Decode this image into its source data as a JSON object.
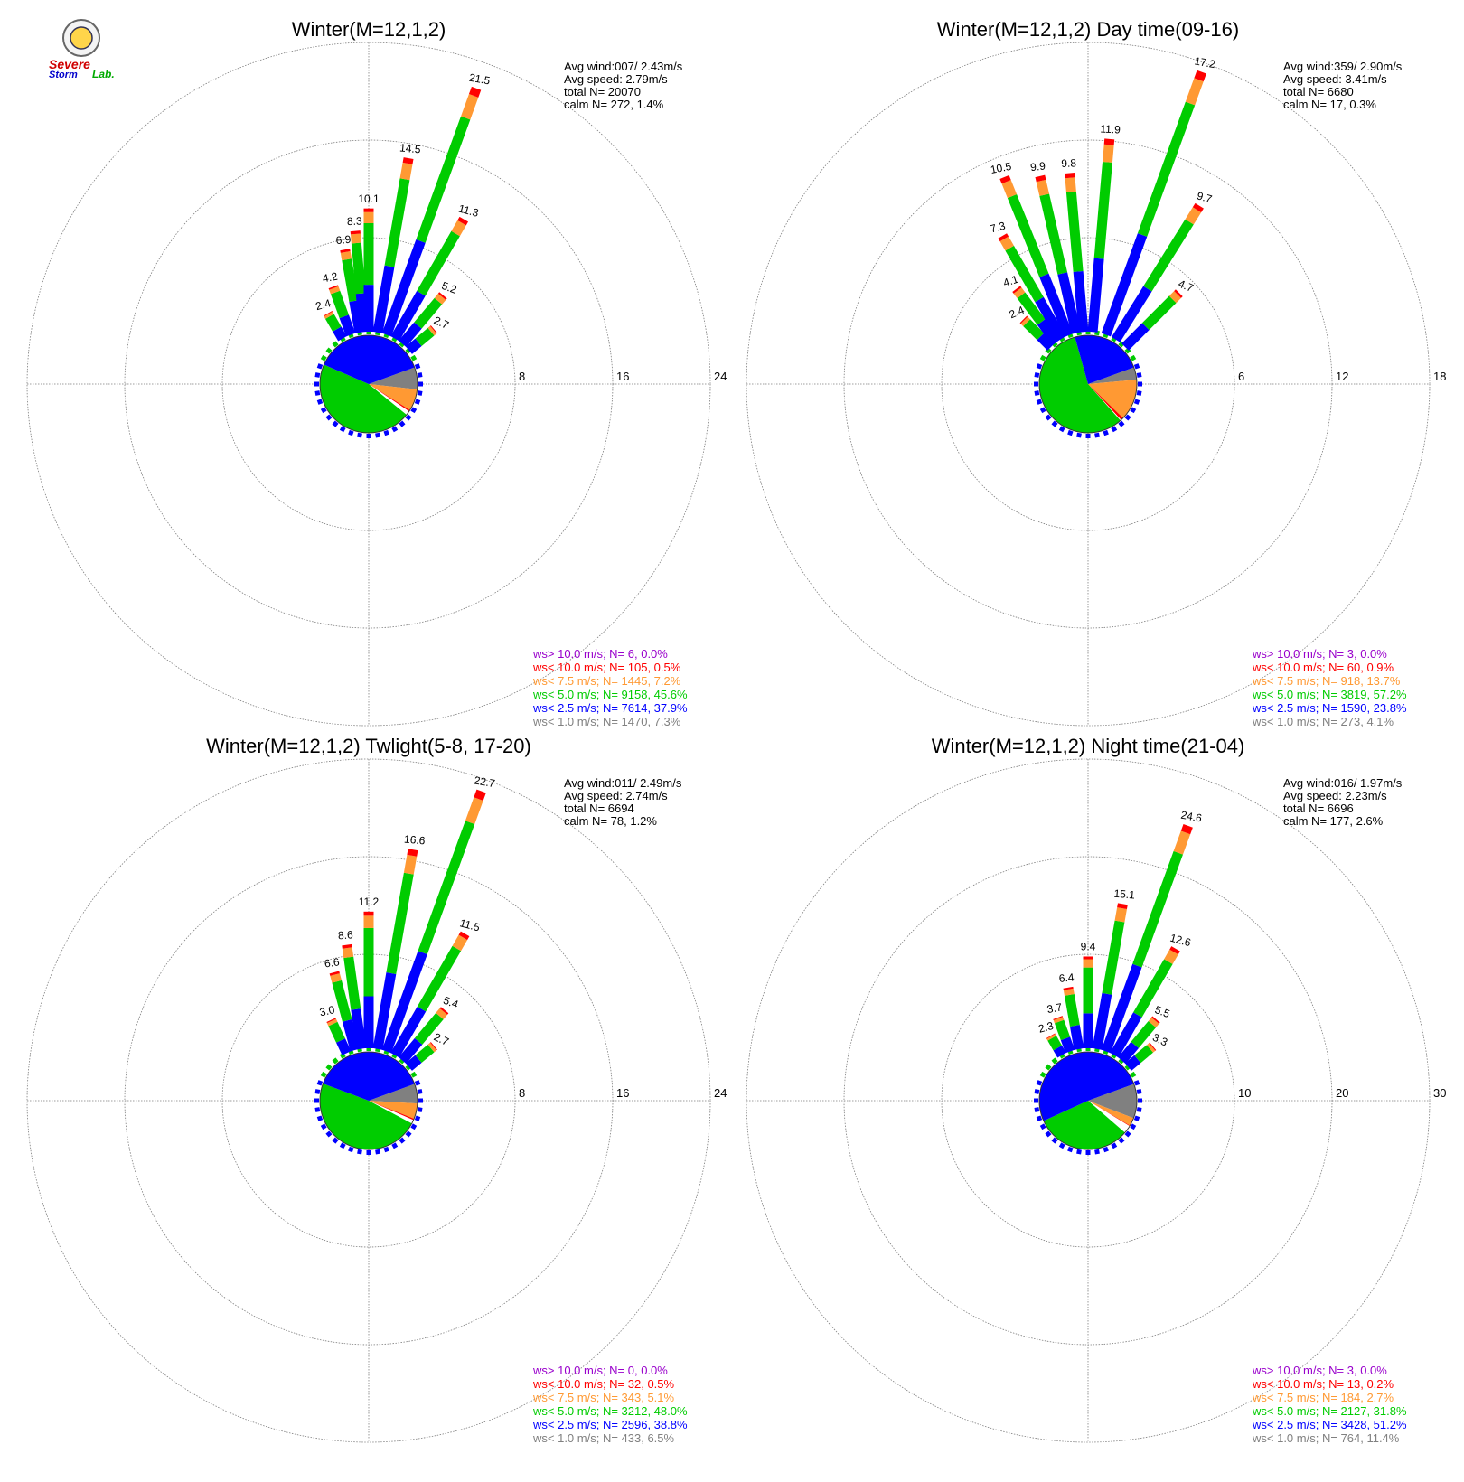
{
  "colors": {
    "gt10": "#9900cc",
    "lt10": "#ff0000",
    "lt75": "#ff9933",
    "lt50": "#00cc00",
    "lt25": "#0000ff",
    "lt10ms": "#808080",
    "grid": "#7f7f7f",
    "text": "#000000"
  },
  "logo": {
    "text_a": "Severe",
    "text_b": "Storm",
    "text_c": "Lab."
  },
  "chart_data": [
    {
      "type": "windrose",
      "title": "Winter(M=12,1,2)",
      "rmax": 24,
      "rings": [
        8,
        16,
        24
      ],
      "info": [
        "Avg wind:007/ 2.43m/s",
        "Avg speed: 2.79m/s",
        "total N=      20070",
        "calm N=    272,   1.4%"
      ],
      "legend": [
        {
          "key": "gt10",
          "text": "ws> 10.0 m/s; N=     6,  0.0%"
        },
        {
          "key": "lt10",
          "text": "ws< 10.0 m/s; N=   105,  0.5%"
        },
        {
          "key": "lt75",
          "text": "ws<  7.5 m/s; N=  1445,  7.2%"
        },
        {
          "key": "lt50",
          "text": "ws<  5.0 m/s; N=  9158, 45.6%"
        },
        {
          "key": "lt25",
          "text": "ws<  2.5 m/s; N=  7614, 37.9%"
        },
        {
          "key": "lt10ms",
          "text": "ws<  1.0 m/s; N=  1470,  7.3%"
        }
      ],
      "bars": [
        {
          "dir": 330,
          "total": 2.4,
          "label": "2.4"
        },
        {
          "dir": 340,
          "total": 4.2,
          "label": "4.2"
        },
        {
          "dir": 350,
          "total": 6.9,
          "label": "6.9"
        },
        {
          "dir": 355,
          "total": 8.3,
          "label": "8.3"
        },
        {
          "dir": 0,
          "total": 10.1,
          "label": "10.1"
        },
        {
          "dir": 10,
          "total": 14.5,
          "label": "14.5"
        },
        {
          "dir": 20,
          "total": 21.5,
          "label": "21.5"
        },
        {
          "dir": 30,
          "total": 11.3,
          "label": "11.3"
        },
        {
          "dir": 40,
          "total": 5.2,
          "label": "5.2"
        },
        {
          "dir": 50,
          "total": 2.7,
          "label": "2.7"
        }
      ],
      "pie": {
        "lt10ms": 7.3,
        "lt25": 37.9,
        "lt50": 45.6,
        "lt75": 7.2,
        "lt10": 0.5,
        "gt10": 0.0,
        "calm": 1.4
      }
    },
    {
      "type": "windrose",
      "title": "Winter(M=12,1,2) Day time(09-16)",
      "rmax": 18,
      "rings": [
        6,
        12,
        18
      ],
      "info": [
        "Avg wind:359/ 2.90m/s",
        "Avg speed: 3.41m/s",
        "total N=       6680",
        "calm N=     17,   0.3%"
      ],
      "legend": [
        {
          "key": "gt10",
          "text": "ws> 10.0 m/s; N=     3,  0.0%"
        },
        {
          "key": "lt10",
          "text": "ws< 10.0 m/s; N=    60,  0.9%"
        },
        {
          "key": "lt75",
          "text": "ws<  7.5 m/s; N=   918, 13.7%"
        },
        {
          "key": "lt50",
          "text": "ws<  5.0 m/s; N=  3819, 57.2%"
        },
        {
          "key": "lt25",
          "text": "ws<  2.5 m/s; N=  1590, 23.8%"
        },
        {
          "key": "lt10ms",
          "text": "ws<  1.0 m/s; N=   273,  4.1%"
        }
      ],
      "bars": [
        {
          "dir": 315,
          "total": 2.4,
          "label": "2.4"
        },
        {
          "dir": 323,
          "total": 4.1,
          "label": "4.1"
        },
        {
          "dir": 330,
          "total": 7.3,
          "label": "7.3"
        },
        {
          "dir": 338,
          "total": 10.5,
          "label": "10.5"
        },
        {
          "dir": 347,
          "total": 9.9,
          "label": "9.9"
        },
        {
          "dir": 355,
          "total": 9.8,
          "label": "9.8"
        },
        {
          "dir": 5,
          "total": 11.9,
          "label": "11.9"
        },
        {
          "dir": 20,
          "total": 17.2,
          "label": "17.2"
        },
        {
          "dir": 32,
          "total": 9.7,
          "label": "9.7"
        },
        {
          "dir": 45,
          "total": 4.7,
          "label": "4.7"
        }
      ],
      "pie": {
        "lt10ms": 4.1,
        "lt25": 23.8,
        "lt50": 57.2,
        "lt75": 13.7,
        "lt10": 0.9,
        "gt10": 0.0,
        "calm": 0.3
      }
    },
    {
      "type": "windrose",
      "title": "Winter(M=12,1,2) Twlight(5-8, 17-20)",
      "rmax": 24,
      "rings": [
        8,
        16,
        24
      ],
      "info": [
        "Avg wind:011/ 2.49m/s",
        "Avg speed: 2.74m/s",
        "total N=       6694",
        "calm N=     78,   1.2%"
      ],
      "legend": [
        {
          "key": "gt10",
          "text": "ws> 10.0 m/s; N=     0,  0.0%"
        },
        {
          "key": "lt10",
          "text": "ws< 10.0 m/s; N=    32,  0.5%"
        },
        {
          "key": "lt75",
          "text": "ws<  7.5 m/s; N=   343,  5.1%"
        },
        {
          "key": "lt50",
          "text": "ws<  5.0 m/s; N=  3212, 48.0%"
        },
        {
          "key": "lt25",
          "text": "ws<  2.5 m/s; N=  2596, 38.8%"
        },
        {
          "key": "lt10ms",
          "text": "ws<  1.0 m/s; N=   433,  6.5%"
        }
      ],
      "bars": [
        {
          "dir": 335,
          "total": 3.0,
          "label": "3.0"
        },
        {
          "dir": 345,
          "total": 6.6,
          "label": "6.6"
        },
        {
          "dir": 352,
          "total": 8.6,
          "label": "8.6"
        },
        {
          "dir": 0,
          "total": 11.2,
          "label": "11.2"
        },
        {
          "dir": 10,
          "total": 16.6,
          "label": "16.6"
        },
        {
          "dir": 20,
          "total": 22.7,
          "label": "22.7"
        },
        {
          "dir": 30,
          "total": 11.5,
          "label": "11.5"
        },
        {
          "dir": 40,
          "total": 5.4,
          "label": "5.4"
        },
        {
          "dir": 50,
          "total": 2.7,
          "label": "2.7"
        }
      ],
      "pie": {
        "lt10ms": 6.5,
        "lt25": 38.8,
        "lt50": 48.0,
        "lt75": 5.1,
        "lt10": 0.5,
        "gt10": 0.0,
        "calm": 1.2
      }
    },
    {
      "type": "windrose",
      "title": "Winter(M=12,1,2) Night time(21-04)",
      "rmax": 30,
      "rings": [
        10,
        20,
        30
      ],
      "info": [
        "Avg wind:016/ 1.97m/s",
        "Avg speed: 2.23m/s",
        "total N=       6696",
        "calm N=    177,   2.6%"
      ],
      "legend": [
        {
          "key": "gt10",
          "text": "ws> 10.0 m/s; N=     3,  0.0%"
        },
        {
          "key": "lt10",
          "text": "ws< 10.0 m/s; N=    13,  0.2%"
        },
        {
          "key": "lt75",
          "text": "ws<  7.5 m/s; N=   184,  2.7%"
        },
        {
          "key": "lt50",
          "text": "ws<  5.0 m/s; N=  2127, 31.8%"
        },
        {
          "key": "lt25",
          "text": "ws<  2.5 m/s; N=  3428, 51.2%"
        },
        {
          "key": "lt10ms",
          "text": "ws<  1.0 m/s; N=   764, 11.4%"
        }
      ],
      "bars": [
        {
          "dir": 330,
          "total": 2.3,
          "label": "2.3"
        },
        {
          "dir": 340,
          "total": 3.7,
          "label": "3.7"
        },
        {
          "dir": 350,
          "total": 6.4,
          "label": "6.4"
        },
        {
          "dir": 0,
          "total": 9.4,
          "label": "9.4"
        },
        {
          "dir": 10,
          "total": 15.1,
          "label": "15.1"
        },
        {
          "dir": 20,
          "total": 24.6,
          "label": "24.6"
        },
        {
          "dir": 30,
          "total": 12.6,
          "label": "12.6"
        },
        {
          "dir": 40,
          "total": 5.5,
          "label": "5.5"
        },
        {
          "dir": 50,
          "total": 3.3,
          "label": "3.3"
        }
      ],
      "pie": {
        "lt10ms": 11.4,
        "lt25": 51.2,
        "lt50": 31.8,
        "lt75": 2.7,
        "lt10": 0.2,
        "gt10": 0.0,
        "calm": 2.6
      }
    }
  ]
}
